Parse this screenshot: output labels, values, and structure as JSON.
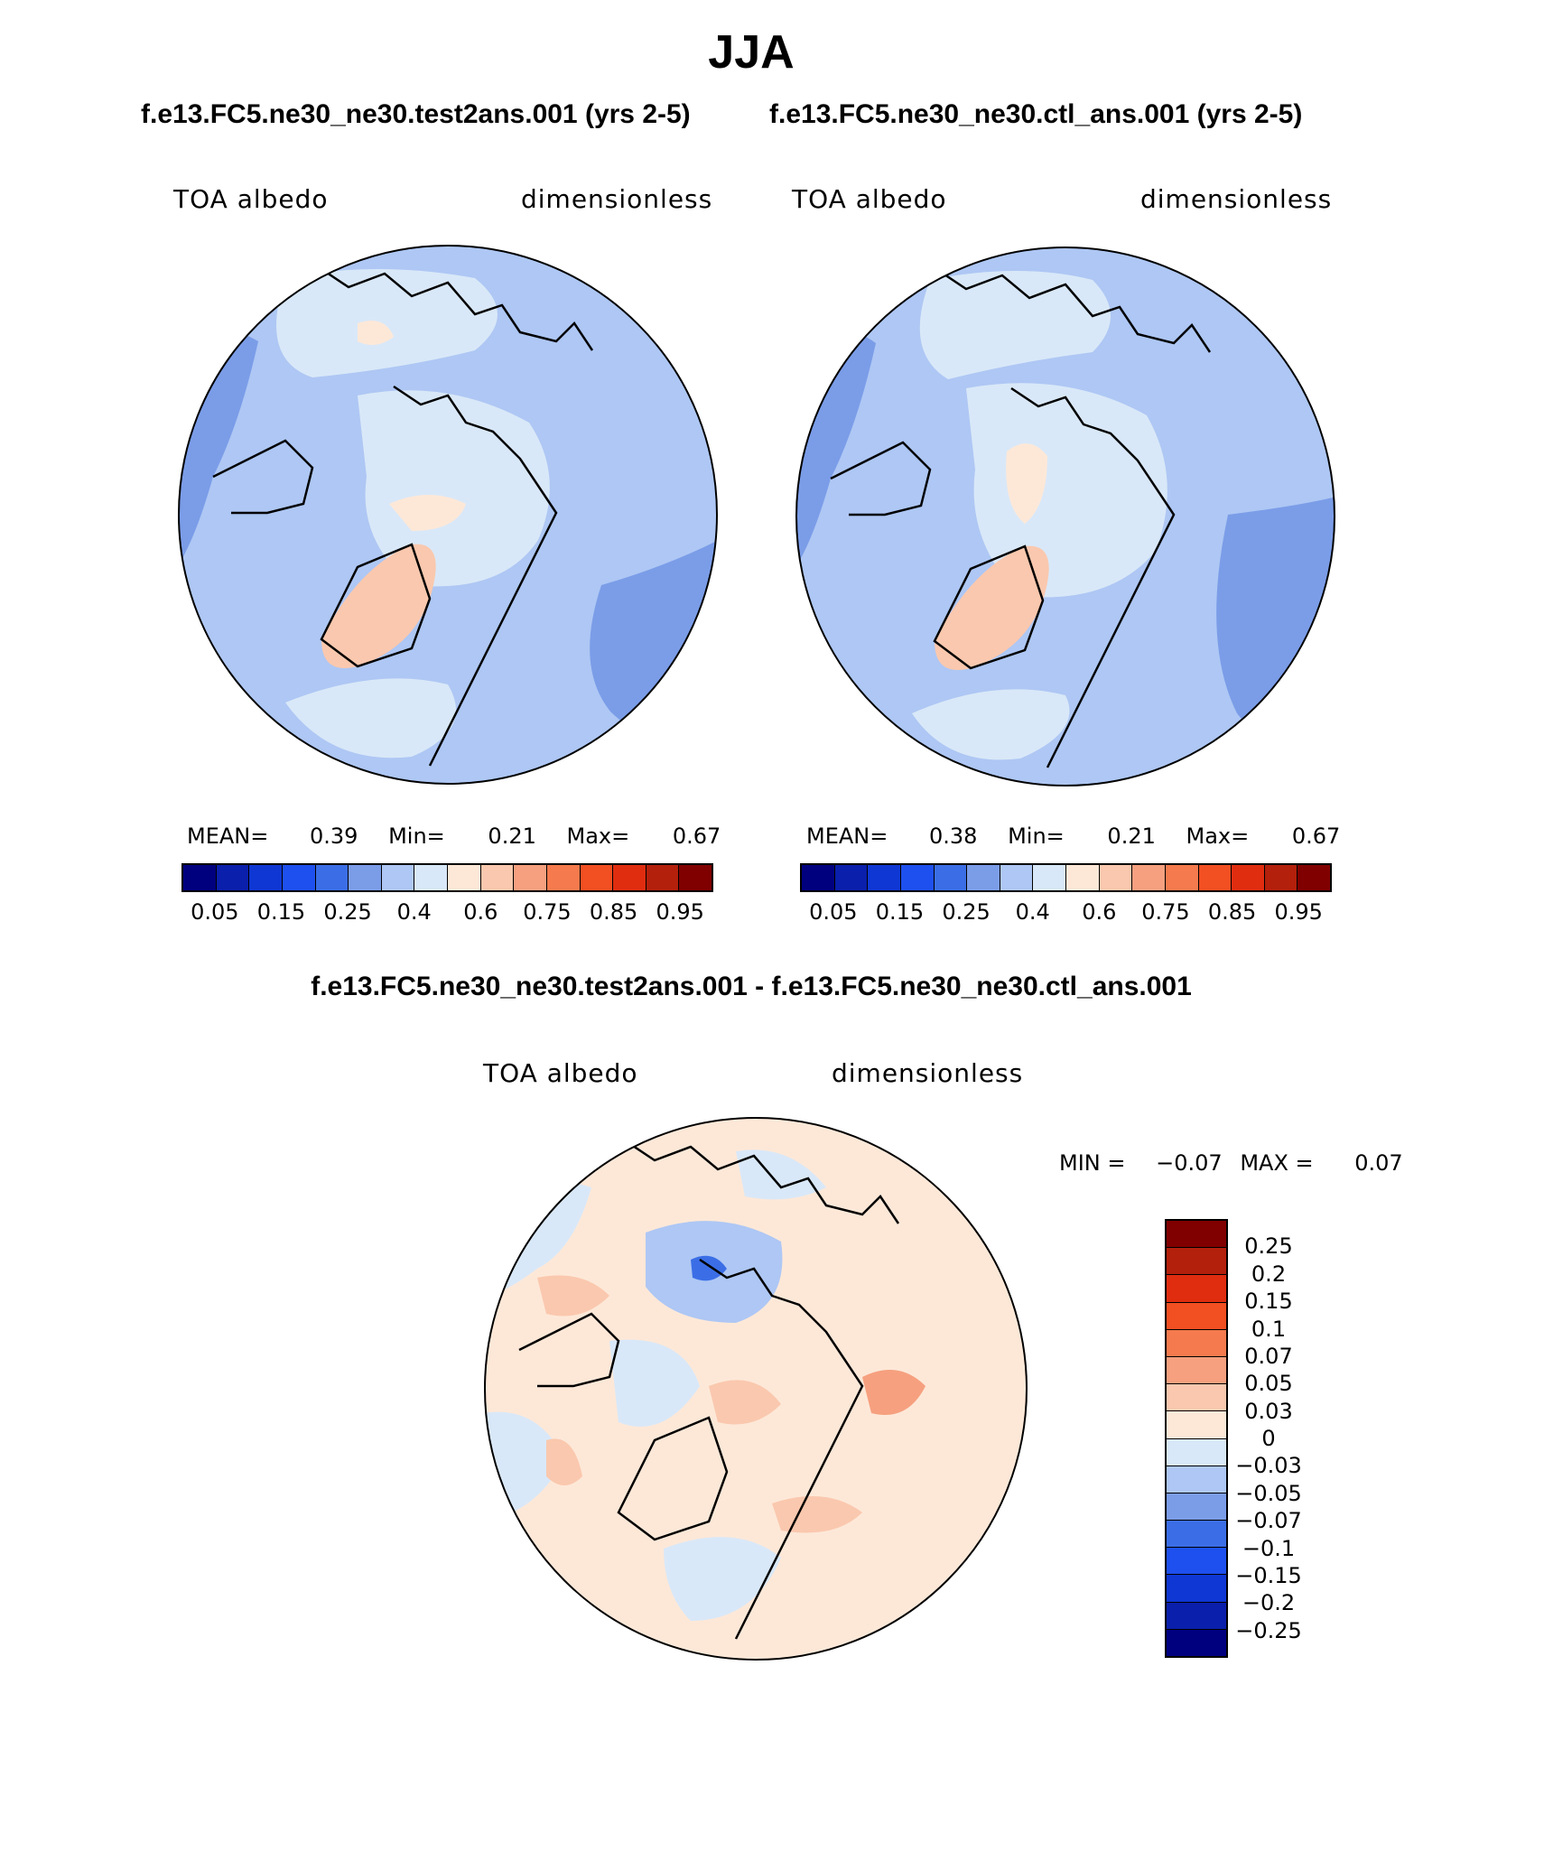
{
  "figure": {
    "season": "JJA",
    "case_test": "f.e13.FC5.ne30_ne30.test2ans.001 (yrs 2-5)",
    "case_ctl": "f.e13.FC5.ne30_ne30.ctl_ans.001 (yrs 2-5)",
    "diff_title": "f.e13.FC5.ne30_ne30.test2ans.001 - f.e13.FC5.ne30_ne30.ctl_ans.001"
  },
  "panels": [
    {
      "variable": "TOA albedo",
      "units": "dimensionless",
      "mean_label": "MEAN=",
      "mean": "0.39",
      "min_label": "Min=",
      "min": "0.21",
      "max_label": "Max=",
      "max": "0.67"
    },
    {
      "variable": "TOA albedo",
      "units": "dimensionless",
      "mean_label": "MEAN=",
      "mean": "0.38",
      "min_label": "Min=",
      "min": "0.21",
      "max_label": "Max=",
      "max": "0.67"
    },
    {
      "variable": "TOA albedo",
      "units": "dimensionless",
      "min_label": "MIN =",
      "min": "−0.07",
      "max_label": "MAX =",
      "max": "0.07"
    }
  ],
  "abs_colorbar": {
    "colors": [
      "#00007f",
      "#0a1fab",
      "#0f37d3",
      "#1e50ef",
      "#3b6ee6",
      "#7b9de8",
      "#aec7f4",
      "#d9e8f8",
      "#fde8d8",
      "#fac8ae",
      "#f6a07f",
      "#f57a4d",
      "#f24f22",
      "#e02d10",
      "#b3200c",
      "#800000"
    ],
    "tick_labels": [
      "0.05",
      "0.15",
      "0.25",
      "0.4",
      "0.6",
      "0.75",
      "0.85",
      "0.95"
    ]
  },
  "diff_colorbar": {
    "colors_top_to_bottom": [
      "#800000",
      "#b3200c",
      "#e02d10",
      "#f24f22",
      "#f57a4d",
      "#f6a07f",
      "#fac8ae",
      "#fde8d8",
      "#d9e8f8",
      "#aec7f4",
      "#7b9de8",
      "#3b6ee6",
      "#1e50ef",
      "#0f37d3",
      "#0a1fab",
      "#00007f"
    ],
    "tick_labels": [
      "0.25",
      "0.2",
      "0.15",
      "0.1",
      "0.07",
      "0.05",
      "0.03",
      "0",
      "−0.03",
      "−0.05",
      "−0.07",
      "−0.1",
      "−0.15",
      "−0.2",
      "−0.25"
    ]
  },
  "map_colors": {
    "ocean_abs": "#aec7f4",
    "low_abs": "#7b9de8",
    "lighter_abs": "#d9e8f8",
    "greenland_abs": "#fac8ae",
    "pale_orange": "#fde8d8",
    "coast": "#000000",
    "diff_base": "#fde8d8",
    "diff_neg1": "#d9e8f8",
    "diff_neg2": "#aec7f4",
    "diff_neg3": "#3b6ee6",
    "diff_pos1": "#fac8ae",
    "diff_pos2": "#f6a07f"
  }
}
